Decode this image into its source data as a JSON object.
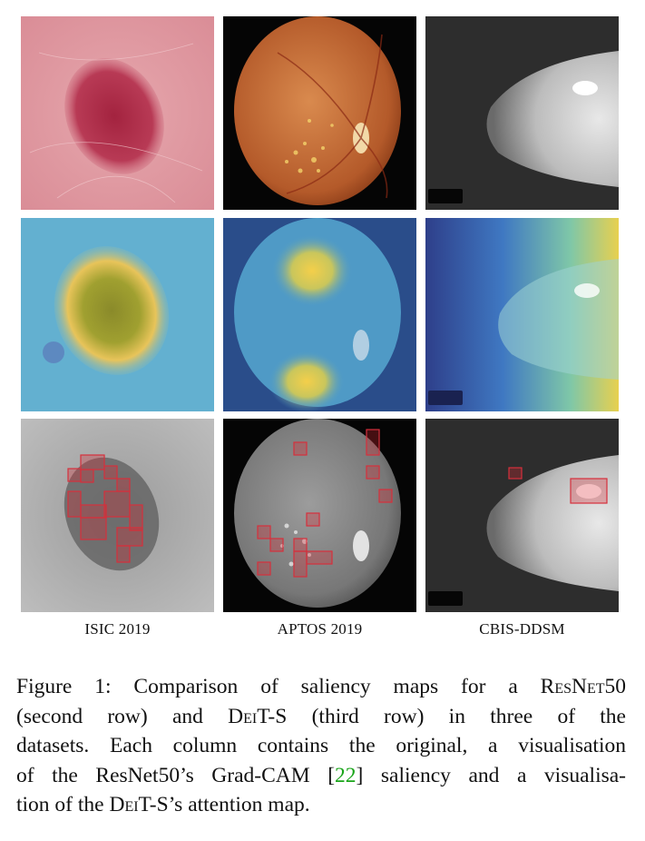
{
  "columns": [
    {
      "label": "ISIC 2019"
    },
    {
      "label": "APTOS 2019"
    },
    {
      "label": "CBIS-DDSM"
    }
  ],
  "caption": {
    "figure_label": "Figure 1:",
    "line1_a": "Comparison of saliency maps for a ",
    "model1": "ResNet50",
    "line2": "(second row) and ",
    "model2": "DeiT-S",
    "line2_b": " (third row) in three of the",
    "line3": "datasets. Each column contains the original, a visualisation",
    "line4_a": "of the ResNet50’s Grad-CAM [",
    "ref": "22",
    "line4_b": "] saliency and a visualisa-",
    "line5_a": "tion of the ",
    "model3": "DeiT-S",
    "line5_b": "’s attention map."
  },
  "colors": {
    "citation_link": "#1aa51a",
    "attention_box": "#d6303c"
  }
}
